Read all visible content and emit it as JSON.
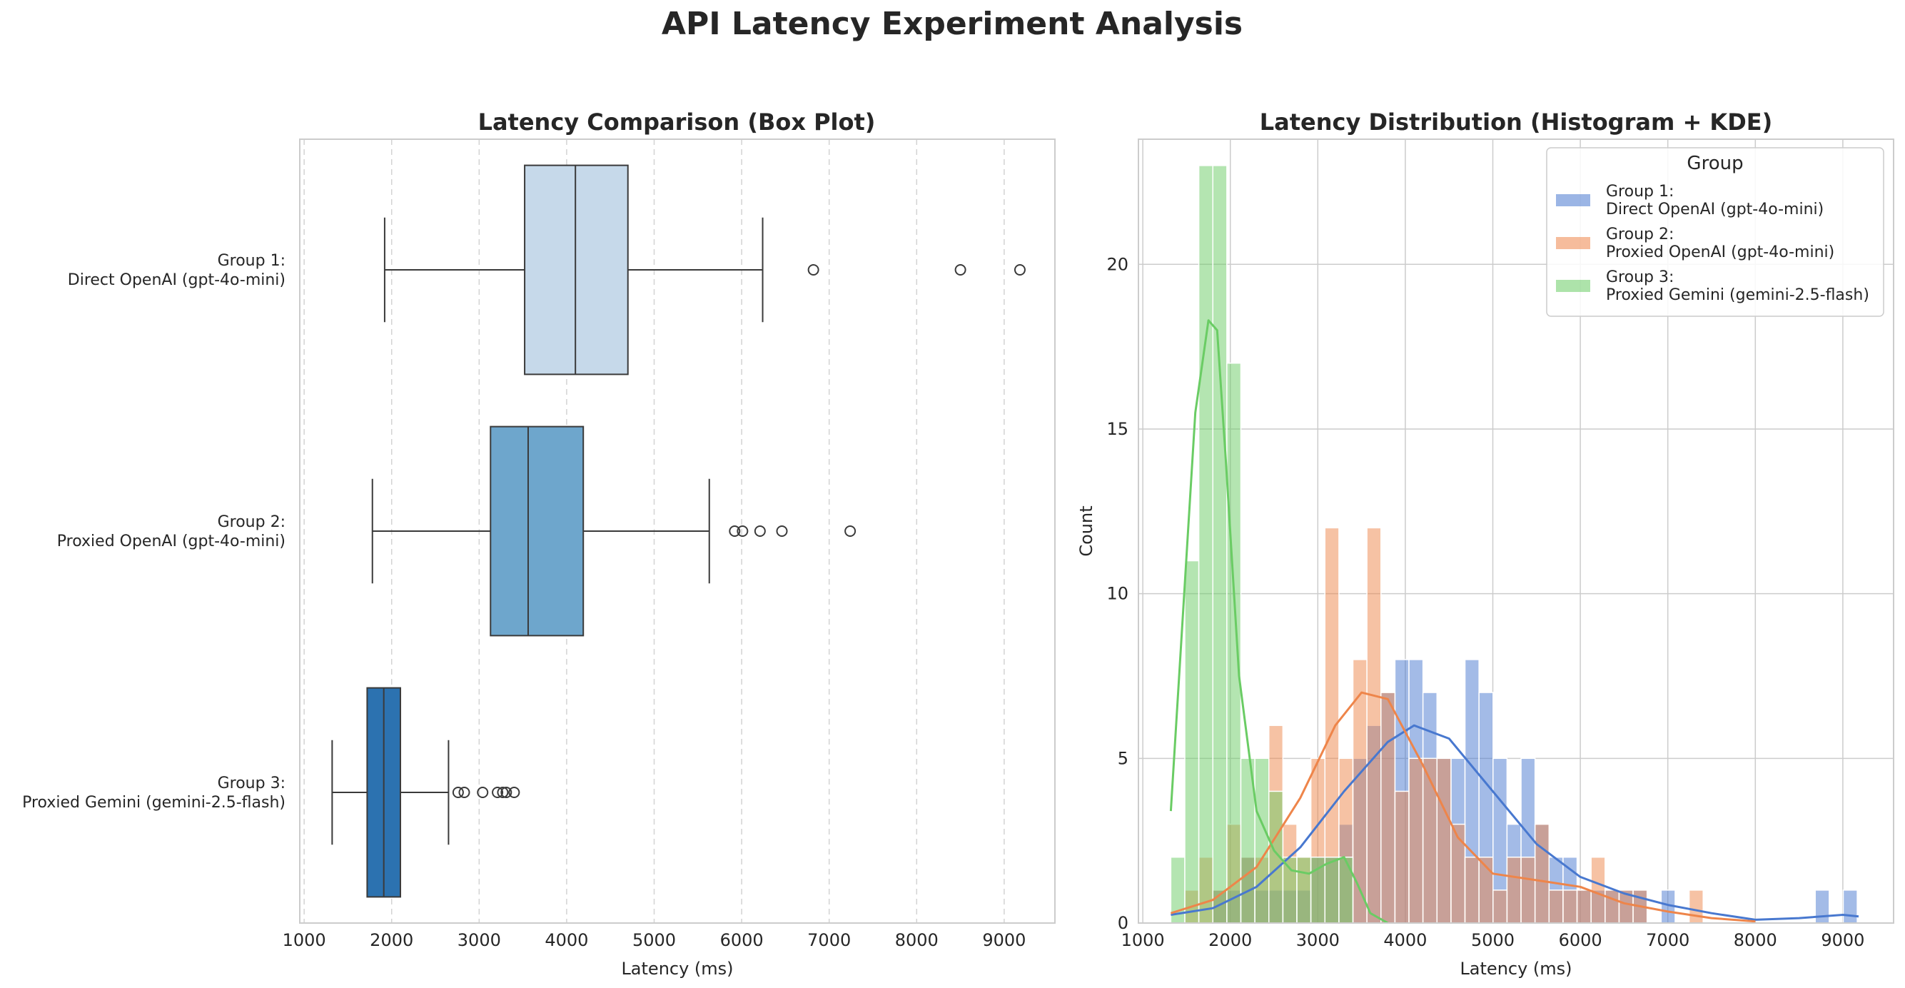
{
  "suptitle": "API Latency Experiment Analysis",
  "chart_data": [
    {
      "type": "box",
      "title": "Latency Comparison (Box Plot)",
      "xlabel": "Latency (ms)",
      "ylabel": "",
      "xlim": [
        950,
        9580
      ],
      "xticks": [
        1000,
        2000,
        3000,
        4000,
        5000,
        6000,
        7000,
        8000,
        9000
      ],
      "grid": "vertical dashed",
      "categories": [
        [
          "Group 1:",
          "Direct OpenAI (gpt-4o-mini)"
        ],
        [
          "Group 2:",
          "Proxied OpenAI (gpt-4o-mini)"
        ],
        [
          "Group 3:",
          "Proxied Gemini (gemini-2.5-flash)"
        ]
      ],
      "boxes": [
        {
          "whislo": 1920,
          "q1": 3520,
          "med": 4100,
          "q3": 4700,
          "whishi": 6240,
          "fliers": [
            6820,
            8500,
            9180
          ],
          "color": "#c6d9ea"
        },
        {
          "whislo": 1780,
          "q1": 3130,
          "med": 3560,
          "q3": 4190,
          "whishi": 5630,
          "fliers": [
            5920,
            6010,
            6210,
            6460,
            7240
          ],
          "color": "#6ea6cc"
        },
        {
          "whislo": 1320,
          "q1": 1720,
          "med": 1910,
          "q3": 2100,
          "whishi": 2650,
          "fliers": [
            2760,
            2830,
            3040,
            3210,
            3270,
            3310,
            3400
          ],
          "color": "#2c72b0"
        }
      ]
    },
    {
      "type": "histogram",
      "title": "Latency Distribution (Histogram + KDE)",
      "xlabel": "Latency (ms)",
      "ylabel": "Count",
      "xlim": [
        950,
        9580
      ],
      "ylim": [
        0,
        23.8
      ],
      "xticks": [
        1000,
        2000,
        3000,
        4000,
        5000,
        6000,
        7000,
        8000,
        9000
      ],
      "yticks": [
        0,
        5,
        10,
        15,
        20
      ],
      "grid": "on",
      "legend_title": "Group",
      "legend_position": "top-right",
      "bins": {
        "start": 1320,
        "width": 160.1,
        "count": 49
      },
      "series": [
        {
          "name": [
            "Group 1:",
            "Direct OpenAI (gpt-4o-mini)"
          ],
          "color": "#4878cf",
          "counts": [
            0,
            0,
            0,
            1,
            1,
            2,
            1,
            1,
            1,
            1,
            2,
            2,
            3,
            5,
            6,
            7,
            8,
            8,
            7,
            5,
            5,
            8,
            7,
            5,
            3,
            5,
            3,
            2,
            2,
            1,
            1,
            1,
            1,
            1,
            0,
            1,
            0,
            0,
            0,
            0,
            0,
            0,
            0,
            0,
            0,
            0,
            1,
            0,
            1
          ],
          "kde_x": [
            1320,
            1800,
            2300,
            2800,
            3300,
            3800,
            4100,
            4500,
            5000,
            5500,
            6000,
            6500,
            7000,
            7500,
            8000,
            8500,
            9000,
            9180
          ],
          "kde_y": [
            0.25,
            0.45,
            1.1,
            2.3,
            4.0,
            5.5,
            6.0,
            5.6,
            4.0,
            2.4,
            1.4,
            0.9,
            0.55,
            0.3,
            0.1,
            0.15,
            0.25,
            0.2
          ]
        },
        {
          "name": [
            "Group 2:",
            "Proxied OpenAI (gpt-4o-mini)"
          ],
          "color": "#ee854a",
          "counts": [
            0,
            1,
            2,
            1,
            3,
            2,
            2,
            6,
            3,
            2,
            5,
            12,
            5,
            8,
            12,
            7,
            4,
            5,
            5,
            5,
            3,
            2,
            2,
            1,
            2,
            2,
            3,
            1,
            1,
            1,
            2,
            1,
            1,
            1,
            0,
            0,
            0,
            1,
            0,
            0,
            0,
            0,
            0,
            0,
            0,
            0,
            0,
            0,
            0
          ],
          "kde_x": [
            1320,
            1800,
            2300,
            2800,
            3200,
            3500,
            3800,
            4200,
            4600,
            5000,
            5500,
            6000,
            6500,
            7000,
            7500,
            8000
          ],
          "kde_y": [
            0.3,
            0.7,
            1.7,
            3.8,
            6.0,
            7.0,
            6.8,
            4.8,
            2.6,
            1.5,
            1.3,
            1.1,
            0.6,
            0.35,
            0.15,
            0.05
          ]
        },
        {
          "name": [
            "Group 3:",
            "Proxied Gemini (gemini-2.5-flash)"
          ],
          "color": "#6acc64",
          "counts": [
            2,
            11,
            23,
            23,
            17,
            5,
            5,
            4,
            2,
            2,
            2,
            2,
            2,
            0,
            0,
            0,
            0,
            0,
            0,
            0,
            0,
            0,
            0,
            0,
            0,
            0,
            0,
            0,
            0,
            0,
            0,
            0,
            0,
            0,
            0,
            0,
            0,
            0,
            0,
            0,
            0,
            0,
            0,
            0,
            0,
            0,
            0,
            0,
            0
          ],
          "kde_x": [
            1320,
            1450,
            1600,
            1750,
            1850,
            1950,
            2100,
            2300,
            2500,
            2700,
            2900,
            3100,
            3300,
            3450,
            3600,
            3800
          ],
          "kde_y": [
            3.4,
            9.0,
            15.5,
            18.3,
            18.0,
            14.0,
            7.5,
            3.4,
            2.2,
            1.6,
            1.5,
            1.8,
            2.0,
            1.2,
            0.3,
            0.0
          ]
        }
      ]
    }
  ]
}
